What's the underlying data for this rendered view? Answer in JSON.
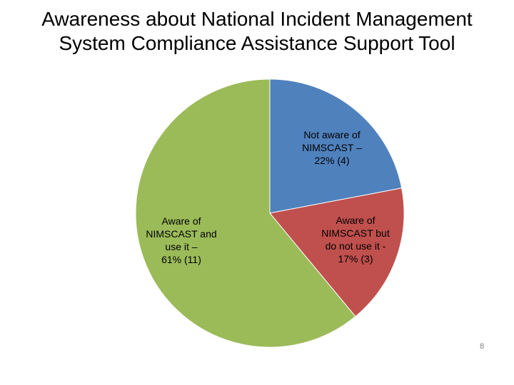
{
  "title_lines": [
    "Awareness about National Incident Management",
    "System Compliance Assistance Support Tool"
  ],
  "page_number": "8",
  "chart_data": {
    "type": "pie",
    "title": "Awareness about National Incident Management System Compliance Assistance Support Tool",
    "slices": [
      {
        "label_lines": [
          "Not aware of",
          "NIMSCAST –",
          "22% (4)"
        ],
        "percent": 22,
        "count": 4,
        "color": "#4f81bd"
      },
      {
        "label_lines": [
          "Aware of",
          "NIMSCAST but",
          "do not use it -",
          "17% (3)"
        ],
        "percent": 17,
        "count": 3,
        "color": "#c0504d"
      },
      {
        "label_lines": [
          "Aware of",
          "NIMSCAST and",
          "use it –",
          "61% (11)"
        ],
        "percent": 61,
        "count": 11,
        "color": "#9bbb59"
      }
    ],
    "start_angle": "12 o'clock",
    "direction": "clockwise",
    "legend": "none"
  }
}
